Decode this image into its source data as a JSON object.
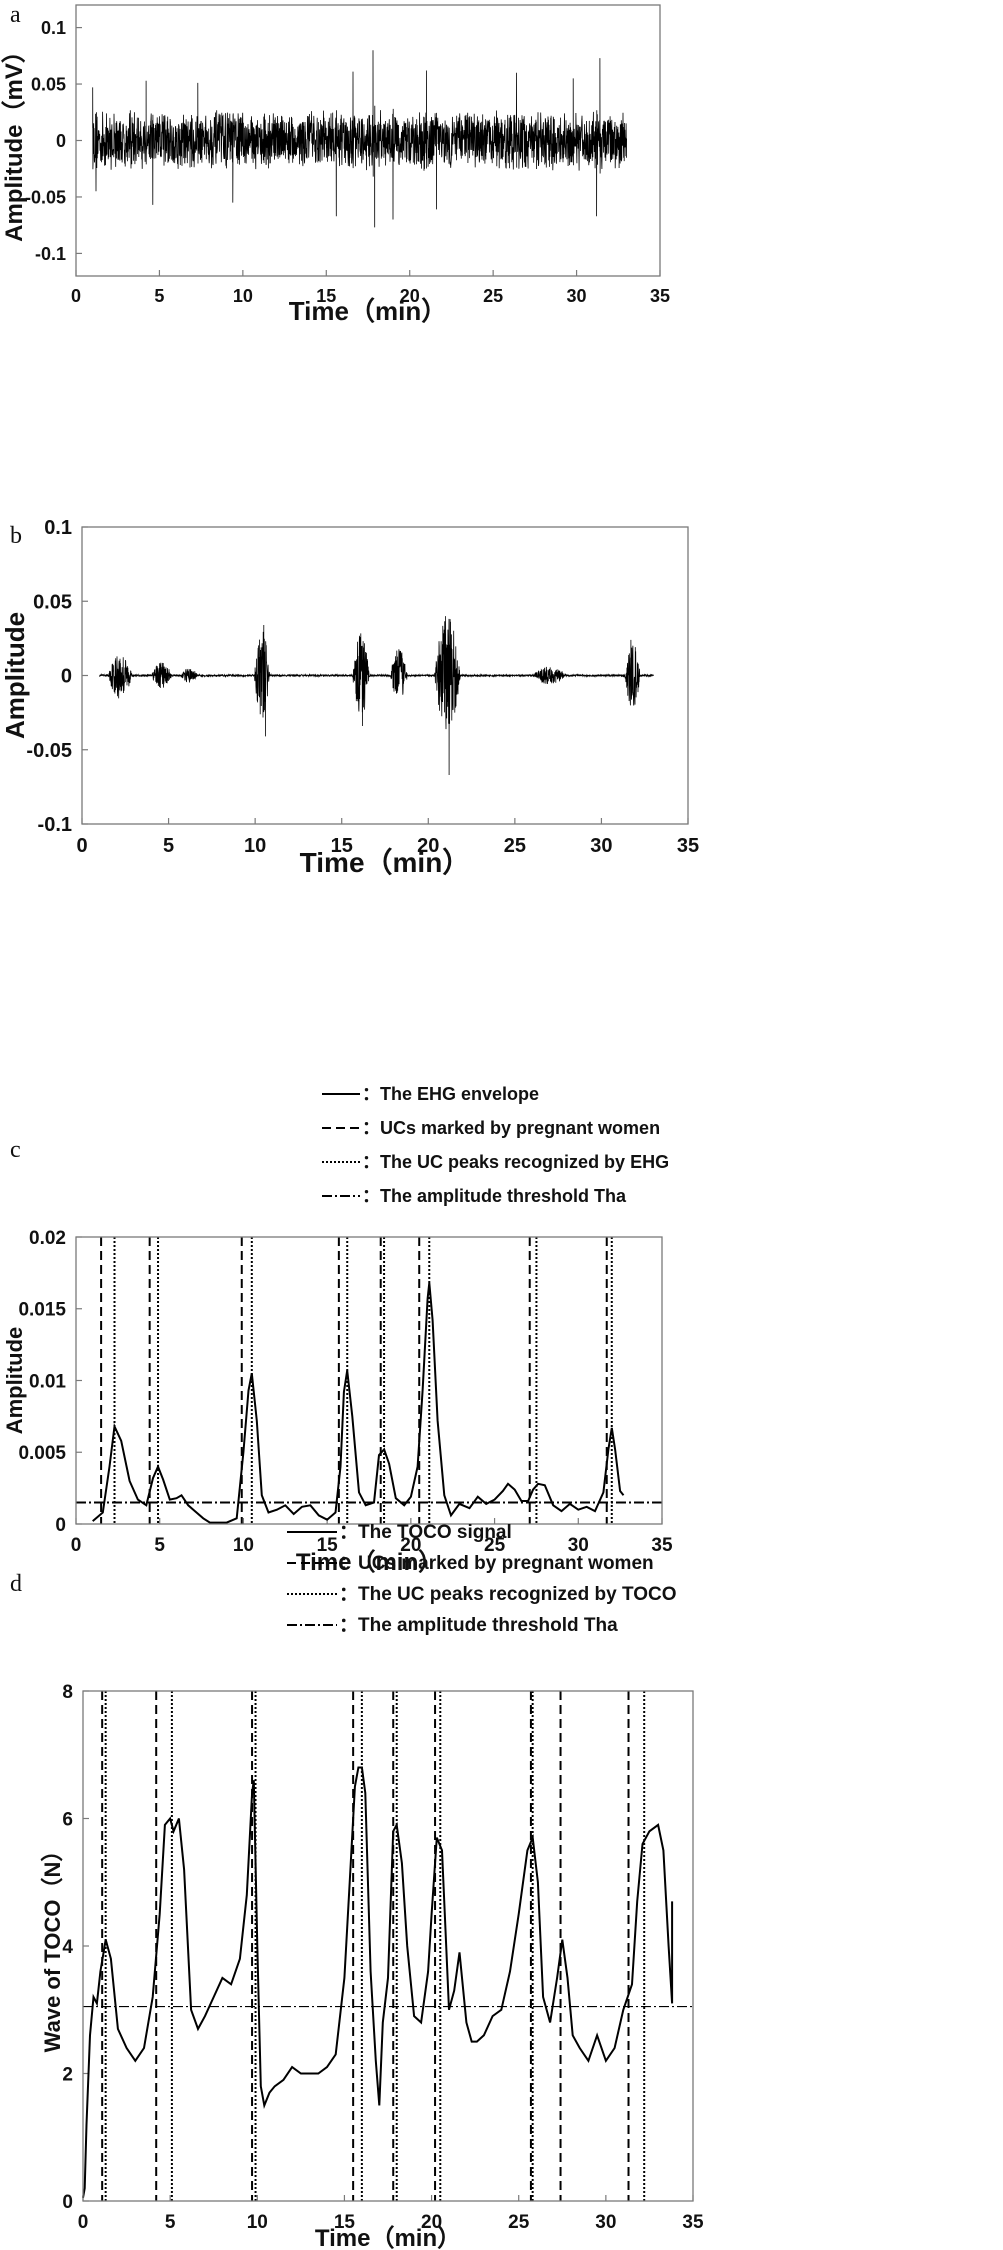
{
  "chart_data": [
    {
      "panel": "a",
      "type": "line",
      "title": "",
      "xlabel": "Time（min）",
      "ylabel": "Amplitude（mV）",
      "xlim": [
        0,
        35
      ],
      "ylim": [
        -0.12,
        0.12
      ],
      "xticks": [
        0,
        5,
        10,
        15,
        20,
        25,
        30,
        35
      ],
      "yticks": [
        -0.1,
        -0.05,
        0,
        0.05,
        0.1
      ],
      "yticklabels": [
        "-0.1",
        "-0.05",
        "0",
        "0.05",
        "0.1"
      ],
      "grid": false,
      "signal_range": [
        1,
        33
      ],
      "base_amplitude": 0.028,
      "spikes": [
        {
          "x": 1.0,
          "y": 0.047
        },
        {
          "x": 1.2,
          "y": -0.045
        },
        {
          "x": 4.2,
          "y": 0.053
        },
        {
          "x": 4.6,
          "y": -0.057
        },
        {
          "x": 7.3,
          "y": 0.051
        },
        {
          "x": 9.4,
          "y": -0.055
        },
        {
          "x": 15.6,
          "y": -0.067
        },
        {
          "x": 16.6,
          "y": 0.061
        },
        {
          "x": 17.8,
          "y": 0.08
        },
        {
          "x": 17.9,
          "y": -0.077
        },
        {
          "x": 19.0,
          "y": -0.07
        },
        {
          "x": 21.0,
          "y": 0.062
        },
        {
          "x": 21.6,
          "y": -0.061
        },
        {
          "x": 26.4,
          "y": 0.06
        },
        {
          "x": 29.8,
          "y": 0.055
        },
        {
          "x": 31.4,
          "y": 0.073
        },
        {
          "x": 31.2,
          "y": -0.067
        }
      ]
    },
    {
      "panel": "b",
      "type": "line",
      "title": "",
      "xlabel": "Time（min）",
      "ylabel": "Amplitude",
      "xlim": [
        0,
        35
      ],
      "ylim": [
        -0.1,
        0.1
      ],
      "xticks": [
        0,
        5,
        10,
        15,
        20,
        25,
        30,
        35
      ],
      "yticks": [
        -0.1,
        -0.05,
        0,
        0.05,
        0.1
      ],
      "yticklabels": [
        "-0.1",
        "-0.05",
        "0",
        "0.05",
        "0.1"
      ],
      "grid": false,
      "signal_range": [
        1,
        33
      ],
      "bursts": [
        {
          "center": 2.2,
          "width": 1.4,
          "amp": 0.016
        },
        {
          "center": 4.6,
          "width": 1.2,
          "amp": 0.009
        },
        {
          "center": 6.2,
          "width": 1.0,
          "amp": 0.005
        },
        {
          "center": 10.4,
          "width": 0.9,
          "amp": 0.03
        },
        {
          "center": 16.1,
          "width": 1.0,
          "amp": 0.029
        },
        {
          "center": 18.3,
          "width": 1.0,
          "amp": 0.018
        },
        {
          "center": 21.1,
          "width": 1.5,
          "amp": 0.04
        },
        {
          "center": 27.0,
          "width": 2.0,
          "amp": 0.006
        },
        {
          "center": 31.8,
          "width": 0.9,
          "amp": 0.022
        }
      ],
      "extremes": [
        {
          "x": 10.5,
          "y": 0.034
        },
        {
          "x": 10.6,
          "y": -0.041
        },
        {
          "x": 16.2,
          "y": -0.034
        },
        {
          "x": 21.0,
          "y": 0.04
        },
        {
          "x": 21.2,
          "y": -0.067
        },
        {
          "x": 31.7,
          "y": 0.024
        }
      ]
    },
    {
      "panel": "c",
      "type": "line",
      "title": "",
      "xlabel": "Time（min）",
      "ylabel": "Amplitude",
      "xlim": [
        0,
        35
      ],
      "ylim": [
        0,
        0.02
      ],
      "xticks": [
        0,
        5,
        10,
        15,
        20,
        25,
        30,
        35
      ],
      "yticks": [
        0,
        0.005,
        0.01,
        0.015,
        0.02
      ],
      "yticklabels": [
        "0",
        "0.005",
        "0.01",
        "0.015",
        "0.02"
      ],
      "grid": false,
      "legend": [
        "：The EHG envelope",
        "：UCs marked by pregnant women",
        "：The UC peaks recognized by EHG",
        "：The amplitude threshold Tha"
      ],
      "legend_placement": "above",
      "threshold": 0.0015,
      "uc_marked": [
        1.5,
        4.4,
        9.9,
        15.7,
        18.2,
        20.5,
        27.1,
        31.7
      ],
      "uc_peaks": [
        2.3,
        4.9,
        10.5,
        16.2,
        18.4,
        21.1,
        27.5,
        32.0
      ],
      "series": [
        {
          "x": [
            1.0,
            1.6,
            2.0,
            2.3,
            2.7,
            3.2,
            3.7,
            4.2,
            4.6,
            4.9,
            5.2,
            5.6,
            6.0,
            6.3,
            6.7,
            7.1,
            7.6,
            8.0,
            9.0,
            9.6,
            10.0,
            10.3,
            10.5,
            10.8,
            11.1,
            11.5,
            12.0,
            12.5,
            13.0,
            13.5,
            14.0,
            14.5,
            15.0,
            15.5,
            15.8,
            16.0,
            16.2,
            16.5,
            16.9,
            17.3,
            17.8,
            18.1,
            18.4,
            18.7,
            19.1,
            19.6,
            20.0,
            20.4,
            20.7,
            21.0,
            21.1,
            21.3,
            21.6,
            22.0,
            22.4,
            22.9,
            23.5,
            24.0,
            24.5,
            25.0,
            25.5,
            25.8,
            26.2,
            26.6,
            27.0,
            27.3,
            27.6,
            28.0,
            28.5,
            29.0,
            29.5,
            30.0,
            30.5,
            31.0,
            31.5,
            31.8,
            32.0,
            32.2,
            32.5,
            32.7
          ],
          "y": [
            0.0002,
            0.0008,
            0.004,
            0.0068,
            0.0058,
            0.003,
            0.0017,
            0.0013,
            0.0032,
            0.004,
            0.0031,
            0.0017,
            0.0018,
            0.002,
            0.0013,
            0.0009,
            0.0004,
            0.0001,
            0.0001,
            0.0004,
            0.005,
            0.0093,
            0.0105,
            0.0072,
            0.002,
            0.0008,
            0.001,
            0.0013,
            0.0007,
            0.0012,
            0.0013,
            0.0006,
            0.0003,
            0.0008,
            0.004,
            0.0092,
            0.0107,
            0.0075,
            0.0022,
            0.0013,
            0.0015,
            0.0048,
            0.0052,
            0.0042,
            0.0018,
            0.0013,
            0.0019,
            0.004,
            0.0093,
            0.0157,
            0.0168,
            0.0142,
            0.0072,
            0.002,
            0.0006,
            0.0014,
            0.0011,
            0.0019,
            0.0014,
            0.0017,
            0.0023,
            0.0028,
            0.0024,
            0.0016,
            0.0016,
            0.0024,
            0.0028,
            0.0027,
            0.0013,
            0.0009,
            0.0014,
            0.001,
            0.0012,
            0.0009,
            0.0022,
            0.0052,
            0.0067,
            0.0052,
            0.0023,
            0.002
          ]
        }
      ]
    },
    {
      "panel": "d",
      "type": "line",
      "title": "",
      "xlabel": "Time（min）",
      "ylabel": "Wave of TOCO（N）",
      "xlim": [
        0,
        35
      ],
      "ylim": [
        0,
        8
      ],
      "xticks": [
        0,
        5,
        10,
        15,
        20,
        25,
        30,
        35
      ],
      "yticks": [
        0,
        2,
        4,
        6,
        8
      ],
      "yticklabels": [
        "0",
        "2",
        "4",
        "6",
        "8"
      ],
      "grid": false,
      "legend": [
        "：The TOCO signal",
        "：UCs marked by pregnant women",
        "：The UC peaks recognized by TOCO",
        "：The amplitude threshold Tha"
      ],
      "legend_placement": "above",
      "threshold": 3.05,
      "uc_marked": [
        1.1,
        4.2,
        9.7,
        15.5,
        17.8,
        20.2,
        25.7,
        27.4,
        31.3
      ],
      "uc_peaks": [
        1.3,
        5.1,
        9.9,
        16.0,
        18.0,
        20.5,
        25.8,
        32.2
      ],
      "series": [
        {
          "x": [
            0.0,
            0.1,
            0.2,
            0.4,
            0.6,
            0.8,
            1.0,
            1.3,
            1.6,
            2.0,
            2.5,
            3.0,
            3.5,
            4.0,
            4.4,
            4.7,
            5.0,
            5.2,
            5.5,
            5.8,
            6.2,
            6.6,
            7.0,
            7.5,
            8.0,
            8.5,
            9.0,
            9.4,
            9.7,
            9.8,
            10.0,
            10.2,
            10.4,
            10.7,
            11.0,
            11.5,
            12.0,
            12.5,
            13.0,
            13.5,
            14.0,
            14.5,
            15.0,
            15.3,
            15.6,
            15.8,
            16.0,
            16.2,
            16.5,
            16.8,
            17.0,
            17.2,
            17.5,
            17.8,
            18.0,
            18.3,
            18.6,
            19.0,
            19.4,
            19.8,
            20.0,
            20.3,
            20.6,
            21.0,
            21.3,
            21.6,
            22.0,
            22.3,
            22.6,
            23.0,
            23.5,
            24.0,
            24.5,
            25.0,
            25.5,
            25.8,
            26.1,
            26.4,
            26.8,
            27.2,
            27.5,
            27.8,
            28.1,
            28.5,
            29.0,
            29.5,
            30.0,
            30.5,
            31.0,
            31.5,
            31.8,
            32.1,
            32.5,
            33.0,
            33.3,
            33.6,
            33.8,
            33.8
          ],
          "y": [
            0.05,
            0.2,
            1.2,
            2.6,
            3.2,
            3.1,
            3.6,
            4.1,
            3.8,
            2.7,
            2.4,
            2.2,
            2.4,
            3.2,
            4.5,
            5.9,
            6.0,
            5.8,
            6.0,
            5.2,
            3.0,
            2.7,
            2.9,
            3.2,
            3.5,
            3.4,
            3.8,
            4.8,
            6.4,
            6.6,
            4.0,
            1.8,
            1.5,
            1.7,
            1.8,
            1.9,
            2.1,
            2.0,
            2.0,
            2.0,
            2.1,
            2.3,
            3.5,
            5.0,
            6.5,
            6.8,
            6.8,
            6.4,
            3.6,
            2.2,
            1.5,
            2.8,
            3.5,
            5.8,
            5.9,
            5.3,
            4.0,
            2.9,
            2.8,
            3.6,
            4.5,
            5.7,
            5.5,
            3.0,
            3.3,
            3.9,
            2.8,
            2.5,
            2.5,
            2.6,
            2.9,
            3.0,
            3.6,
            4.5,
            5.5,
            5.7,
            5.0,
            3.2,
            2.8,
            3.5,
            4.1,
            3.5,
            2.6,
            2.4,
            2.2,
            2.6,
            2.2,
            2.4,
            3.0,
            3.4,
            4.7,
            5.6,
            5.8,
            5.9,
            5.5,
            4.0,
            3.1,
            4.7
          ]
        }
      ]
    }
  ],
  "panel_letters": [
    "a",
    "b",
    "c",
    "d"
  ],
  "colors": {
    "line": "#000000",
    "axis": "#7a7a7a",
    "text": "#111111",
    "threshold": "#000000"
  }
}
